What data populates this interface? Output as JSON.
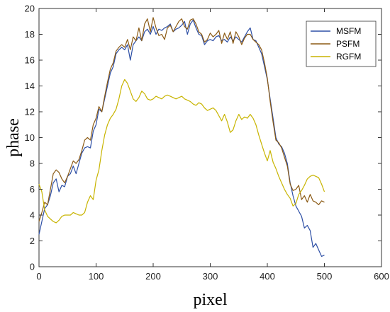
{
  "chart_data": {
    "type": "line",
    "title": "",
    "xlabel": "pixel",
    "ylabel": "phase",
    "xlim": [
      0,
      600
    ],
    "ylim": [
      0,
      20
    ],
    "xticks": [
      0,
      100,
      200,
      300,
      400,
      500,
      600
    ],
    "yticks": [
      0,
      2,
      4,
      6,
      8,
      10,
      12,
      14,
      16,
      18,
      20
    ],
    "grid": false,
    "legend": "top-right",
    "series": [
      {
        "name": "MSFM",
        "color": "#2d4fa5",
        "points": [
          [
            0,
            2.5
          ],
          [
            5,
            3.5
          ],
          [
            10,
            4.5
          ],
          [
            15,
            4.8
          ],
          [
            20,
            5.5
          ],
          [
            25,
            6.5
          ],
          [
            30,
            6.8
          ],
          [
            35,
            5.8
          ],
          [
            40,
            6.3
          ],
          [
            45,
            6.2
          ],
          [
            50,
            7.0
          ],
          [
            55,
            7.2
          ],
          [
            60,
            7.8
          ],
          [
            65,
            7.2
          ],
          [
            70,
            8.0
          ],
          [
            75,
            8.8
          ],
          [
            80,
            9.2
          ],
          [
            85,
            9.3
          ],
          [
            90,
            9.2
          ],
          [
            95,
            10.5
          ],
          [
            100,
            11.0
          ],
          [
            105,
            12.2
          ],
          [
            110,
            12.0
          ],
          [
            115,
            13.0
          ],
          [
            120,
            14.0
          ],
          [
            125,
            15.0
          ],
          [
            130,
            15.5
          ],
          [
            135,
            16.5
          ],
          [
            140,
            16.8
          ],
          [
            145,
            17.0
          ],
          [
            150,
            16.8
          ],
          [
            155,
            17.2
          ],
          [
            160,
            16.0
          ],
          [
            165,
            17.2
          ],
          [
            170,
            17.5
          ],
          [
            175,
            17.8
          ],
          [
            180,
            17.5
          ],
          [
            185,
            18.2
          ],
          [
            190,
            18.4
          ],
          [
            195,
            18.0
          ],
          [
            200,
            18.6
          ],
          [
            205,
            18.0
          ],
          [
            210,
            18.4
          ],
          [
            215,
            18.3
          ],
          [
            220,
            18.5
          ],
          [
            225,
            18.6
          ],
          [
            230,
            18.8
          ],
          [
            235,
            18.2
          ],
          [
            240,
            18.4
          ],
          [
            245,
            18.5
          ],
          [
            250,
            18.7
          ],
          [
            255,
            19.0
          ],
          [
            260,
            18.0
          ],
          [
            265,
            18.8
          ],
          [
            270,
            19.1
          ],
          [
            275,
            18.5
          ],
          [
            280,
            18.0
          ],
          [
            285,
            17.9
          ],
          [
            290,
            17.2
          ],
          [
            295,
            17.5
          ],
          [
            300,
            17.6
          ],
          [
            305,
            17.5
          ],
          [
            310,
            17.8
          ],
          [
            315,
            17.9
          ],
          [
            320,
            17.5
          ],
          [
            325,
            17.6
          ],
          [
            330,
            17.4
          ],
          [
            335,
            17.8
          ],
          [
            340,
            17.5
          ],
          [
            345,
            17.8
          ],
          [
            350,
            17.6
          ],
          [
            355,
            17.4
          ],
          [
            360,
            17.8
          ],
          [
            365,
            18.2
          ],
          [
            370,
            18.5
          ],
          [
            375,
            17.6
          ],
          [
            380,
            17.5
          ],
          [
            385,
            17.0
          ],
          [
            390,
            16.5
          ],
          [
            395,
            15.5
          ],
          [
            400,
            14.5
          ],
          [
            405,
            13.0
          ],
          [
            410,
            11.5
          ],
          [
            415,
            10.0
          ],
          [
            420,
            9.5
          ],
          [
            425,
            9.3
          ],
          [
            430,
            8.8
          ],
          [
            435,
            8.0
          ],
          [
            440,
            6.5
          ],
          [
            445,
            5.5
          ],
          [
            450,
            4.7
          ],
          [
            455,
            4.3
          ],
          [
            460,
            3.9
          ],
          [
            465,
            3.0
          ],
          [
            470,
            3.2
          ],
          [
            475,
            2.8
          ],
          [
            480,
            1.5
          ],
          [
            485,
            1.8
          ],
          [
            490,
            1.3
          ],
          [
            495,
            0.8
          ],
          [
            500,
            0.9
          ]
        ]
      },
      {
        "name": "PSFM",
        "color": "#8b5a14",
        "points": [
          [
            0,
            3.5
          ],
          [
            5,
            4.2
          ],
          [
            10,
            5.0
          ],
          [
            15,
            4.8
          ],
          [
            20,
            6.0
          ],
          [
            25,
            7.2
          ],
          [
            30,
            7.5
          ],
          [
            35,
            7.3
          ],
          [
            40,
            6.8
          ],
          [
            45,
            6.5
          ],
          [
            50,
            7.0
          ],
          [
            55,
            7.6
          ],
          [
            60,
            8.2
          ],
          [
            65,
            8.0
          ],
          [
            70,
            8.3
          ],
          [
            75,
            9.0
          ],
          [
            80,
            9.8
          ],
          [
            85,
            10.0
          ],
          [
            90,
            9.8
          ],
          [
            95,
            11.0
          ],
          [
            100,
            11.5
          ],
          [
            105,
            12.4
          ],
          [
            110,
            12.0
          ],
          [
            115,
            13.2
          ],
          [
            120,
            14.3
          ],
          [
            125,
            15.3
          ],
          [
            130,
            15.8
          ],
          [
            135,
            16.7
          ],
          [
            140,
            17.0
          ],
          [
            145,
            17.2
          ],
          [
            150,
            17.0
          ],
          [
            155,
            17.6
          ],
          [
            160,
            16.8
          ],
          [
            165,
            17.8
          ],
          [
            170,
            17.5
          ],
          [
            175,
            18.5
          ],
          [
            180,
            17.5
          ],
          [
            185,
            18.8
          ],
          [
            190,
            19.2
          ],
          [
            195,
            18.2
          ],
          [
            200,
            19.3
          ],
          [
            205,
            18.5
          ],
          [
            210,
            17.9
          ],
          [
            215,
            18.0
          ],
          [
            220,
            17.6
          ],
          [
            225,
            18.5
          ],
          [
            230,
            18.7
          ],
          [
            235,
            18.2
          ],
          [
            240,
            18.6
          ],
          [
            245,
            19.0
          ],
          [
            250,
            19.2
          ],
          [
            255,
            18.6
          ],
          [
            260,
            18.4
          ],
          [
            265,
            19.1
          ],
          [
            270,
            19.2
          ],
          [
            275,
            18.8
          ],
          [
            280,
            18.2
          ],
          [
            285,
            18.0
          ],
          [
            290,
            17.4
          ],
          [
            295,
            17.6
          ],
          [
            300,
            18.1
          ],
          [
            305,
            17.8
          ],
          [
            310,
            18.0
          ],
          [
            315,
            18.3
          ],
          [
            320,
            17.3
          ],
          [
            325,
            18.1
          ],
          [
            330,
            17.6
          ],
          [
            335,
            18.2
          ],
          [
            340,
            17.3
          ],
          [
            345,
            18.2
          ],
          [
            350,
            17.8
          ],
          [
            355,
            17.2
          ],
          [
            360,
            17.7
          ],
          [
            365,
            18.0
          ],
          [
            370,
            18.0
          ],
          [
            375,
            17.6
          ],
          [
            380,
            17.4
          ],
          [
            385,
            17.2
          ],
          [
            390,
            16.8
          ],
          [
            395,
            15.8
          ],
          [
            400,
            14.6
          ],
          [
            405,
            12.8
          ],
          [
            410,
            11.2
          ],
          [
            415,
            9.8
          ],
          [
            420,
            9.6
          ],
          [
            425,
            9.2
          ],
          [
            430,
            8.5
          ],
          [
            435,
            7.8
          ],
          [
            440,
            6.4
          ],
          [
            445,
            5.9
          ],
          [
            450,
            6.0
          ],
          [
            455,
            6.3
          ],
          [
            460,
            5.2
          ],
          [
            465,
            5.5
          ],
          [
            470,
            5.0
          ],
          [
            475,
            5.6
          ],
          [
            480,
            5.1
          ],
          [
            485,
            5.0
          ],
          [
            490,
            4.8
          ],
          [
            495,
            5.1
          ],
          [
            500,
            5.0
          ]
        ]
      },
      {
        "name": "RGFM",
        "color": "#c8b400",
        "points": [
          [
            0,
            6.4
          ],
          [
            5,
            5.8
          ],
          [
            10,
            4.4
          ],
          [
            15,
            3.9
          ],
          [
            20,
            3.7
          ],
          [
            25,
            3.5
          ],
          [
            30,
            3.4
          ],
          [
            35,
            3.6
          ],
          [
            40,
            3.9
          ],
          [
            45,
            4.0
          ],
          [
            50,
            4.0
          ],
          [
            55,
            4.0
          ],
          [
            60,
            4.2
          ],
          [
            65,
            4.1
          ],
          [
            70,
            4.0
          ],
          [
            75,
            4.0
          ],
          [
            80,
            4.2
          ],
          [
            85,
            5.0
          ],
          [
            90,
            5.5
          ],
          [
            95,
            5.2
          ],
          [
            100,
            6.7
          ],
          [
            105,
            7.5
          ],
          [
            110,
            9.0
          ],
          [
            115,
            10.2
          ],
          [
            120,
            11.0
          ],
          [
            125,
            11.5
          ],
          [
            130,
            11.8
          ],
          [
            135,
            12.2
          ],
          [
            140,
            13.0
          ],
          [
            145,
            14.0
          ],
          [
            150,
            14.5
          ],
          [
            155,
            14.2
          ],
          [
            160,
            13.6
          ],
          [
            165,
            13.0
          ],
          [
            170,
            12.8
          ],
          [
            175,
            13.1
          ],
          [
            180,
            13.6
          ],
          [
            185,
            13.4
          ],
          [
            190,
            13.0
          ],
          [
            195,
            12.9
          ],
          [
            200,
            13.0
          ],
          [
            205,
            13.2
          ],
          [
            210,
            13.1
          ],
          [
            215,
            13.0
          ],
          [
            220,
            13.2
          ],
          [
            225,
            13.3
          ],
          [
            230,
            13.2
          ],
          [
            235,
            13.1
          ],
          [
            240,
            13.0
          ],
          [
            245,
            13.1
          ],
          [
            250,
            13.2
          ],
          [
            255,
            13.0
          ],
          [
            260,
            12.9
          ],
          [
            265,
            12.8
          ],
          [
            270,
            12.6
          ],
          [
            275,
            12.5
          ],
          [
            280,
            12.7
          ],
          [
            285,
            12.6
          ],
          [
            290,
            12.3
          ],
          [
            295,
            12.1
          ],
          [
            300,
            12.2
          ],
          [
            305,
            12.3
          ],
          [
            310,
            12.1
          ],
          [
            315,
            11.7
          ],
          [
            320,
            11.3
          ],
          [
            325,
            11.8
          ],
          [
            330,
            11.2
          ],
          [
            335,
            10.4
          ],
          [
            340,
            10.6
          ],
          [
            345,
            11.3
          ],
          [
            350,
            11.8
          ],
          [
            355,
            11.4
          ],
          [
            360,
            11.6
          ],
          [
            365,
            11.5
          ],
          [
            370,
            11.8
          ],
          [
            375,
            11.5
          ],
          [
            380,
            11.0
          ],
          [
            385,
            10.2
          ],
          [
            390,
            9.5
          ],
          [
            395,
            8.8
          ],
          [
            400,
            8.2
          ],
          [
            405,
            9.0
          ],
          [
            410,
            8.1
          ],
          [
            415,
            7.6
          ],
          [
            420,
            7.0
          ],
          [
            425,
            6.5
          ],
          [
            430,
            6.0
          ],
          [
            435,
            5.6
          ],
          [
            440,
            5.3
          ],
          [
            445,
            4.7
          ],
          [
            450,
            4.9
          ],
          [
            455,
            5.6
          ],
          [
            460,
            5.9
          ],
          [
            465,
            6.3
          ],
          [
            470,
            6.8
          ],
          [
            475,
            7.0
          ],
          [
            480,
            7.1
          ],
          [
            485,
            7.0
          ],
          [
            490,
            6.9
          ],
          [
            495,
            6.4
          ],
          [
            500,
            5.8
          ]
        ]
      }
    ]
  }
}
